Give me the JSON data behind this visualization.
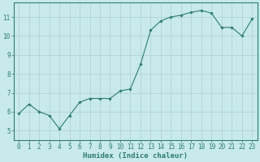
{
  "x": [
    0,
    1,
    2,
    3,
    4,
    5,
    6,
    7,
    8,
    9,
    10,
    11,
    12,
    13,
    14,
    15,
    16,
    17,
    18,
    19,
    20,
    21,
    22,
    23
  ],
  "y": [
    5.9,
    6.4,
    6.0,
    5.8,
    5.1,
    5.8,
    6.5,
    6.7,
    6.7,
    6.7,
    7.1,
    7.2,
    8.5,
    10.3,
    10.8,
    11.0,
    11.1,
    11.25,
    11.35,
    11.2,
    10.45,
    10.45,
    10.0,
    10.9
  ],
  "line_color": "#2e7d6e",
  "marker": "D",
  "marker_size": 1.8,
  "bg_color": "#c8eaea",
  "grid_color": "#b0d0d0",
  "xlabel": "Humidex (Indice chaleur)",
  "ylim": [
    4.5,
    11.75
  ],
  "xlim": [
    -0.5,
    23.5
  ],
  "yticks": [
    5,
    6,
    7,
    8,
    9,
    10,
    11
  ],
  "xticks": [
    0,
    1,
    2,
    3,
    4,
    5,
    6,
    7,
    8,
    9,
    10,
    11,
    12,
    13,
    14,
    15,
    16,
    17,
    18,
    19,
    20,
    21,
    22,
    23
  ],
  "tick_label_fontsize": 5.5,
  "xlabel_fontsize": 6.5,
  "xlabel_bold": true
}
